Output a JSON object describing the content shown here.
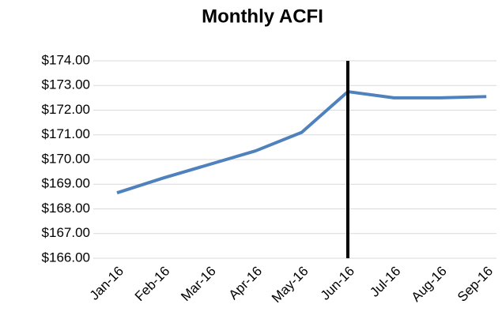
{
  "chart_data": {
    "type": "line",
    "title": "Monthly ACFI",
    "categories": [
      "Jan-16",
      "Feb-16",
      "Mar-16",
      "Apr-16",
      "May-16",
      "Jun-16",
      "Jul-16",
      "Aug-16",
      "Sep-16"
    ],
    "series": [
      {
        "name": "ACFI",
        "color": "#4f81bd",
        "values": [
          168.65,
          169.25,
          169.8,
          170.35,
          171.1,
          172.75,
          172.5,
          172.5,
          172.55
        ]
      }
    ],
    "ylim": [
      166,
      174
    ],
    "yticks": [
      {
        "value": 166,
        "label": "$166.00"
      },
      {
        "value": 167,
        "label": "$167.00"
      },
      {
        "value": 168,
        "label": "$168.00"
      },
      {
        "value": 169,
        "label": "$169.00"
      },
      {
        "value": 170,
        "label": "$170.00"
      },
      {
        "value": 171,
        "label": "$171.00"
      },
      {
        "value": 172,
        "label": "$172.00"
      },
      {
        "value": 173,
        "label": "$173.00"
      },
      {
        "value": 174,
        "label": "$174.00"
      }
    ],
    "grid": true,
    "vline": {
      "category_index": 5,
      "color": "#000000"
    }
  }
}
